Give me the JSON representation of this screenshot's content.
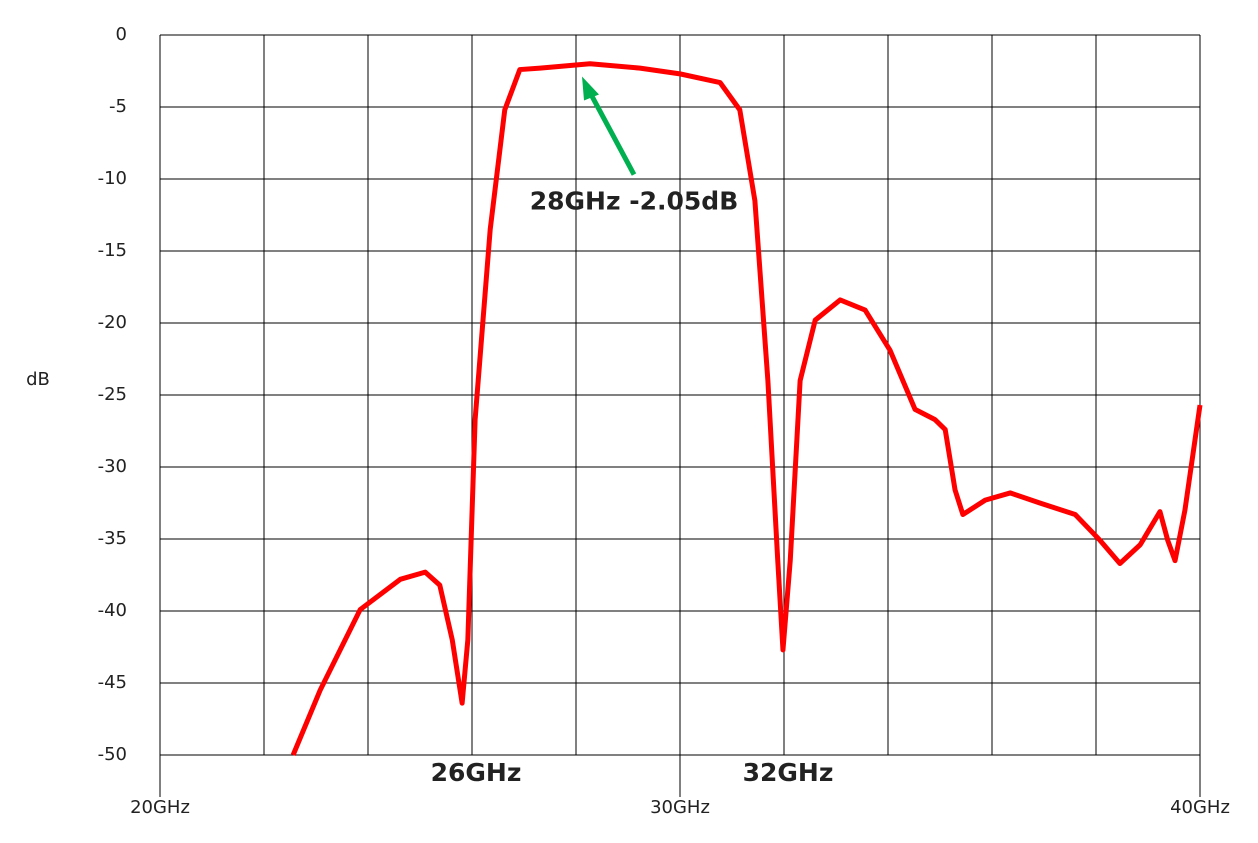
{
  "chart_data": {
    "type": "line",
    "ylabel": "dB",
    "xlim": [
      20,
      40
    ],
    "ylim": [
      -50,
      0
    ],
    "xticks": [
      {
        "value": 20,
        "label": "20GHz"
      },
      {
        "value": 30,
        "label": "30GHz"
      },
      {
        "value": 40,
        "label": "40GHz"
      }
    ],
    "yticks": [
      0,
      -5,
      -10,
      -15,
      -20,
      -25,
      -30,
      -35,
      -40,
      -45,
      -50
    ],
    "x_gridlines": [
      20,
      22,
      24,
      26,
      28,
      30,
      32,
      34,
      36,
      38,
      40
    ],
    "grid": true,
    "series": [
      {
        "color": "#ff0000",
        "x": [
          22.56,
          23.08,
          23.85,
          24.62,
          25.1,
          25.38,
          25.62,
          25.81,
          25.92,
          26.06,
          26.35,
          26.63,
          26.92,
          27.31,
          28.27,
          29.23,
          30,
          30.77,
          31.15,
          31.44,
          31.69,
          31.88,
          31.98,
          32.12,
          32.31,
          32.6,
          33.08,
          33.56,
          34.04,
          34.52,
          34.9,
          35.1,
          35.29,
          35.44,
          35.87,
          36.35,
          36.92,
          37.6,
          38.08,
          38.46,
          38.85,
          39.23,
          39.38,
          39.52,
          39.71,
          40
        ],
        "values": [
          -50,
          -45.5,
          -39.9,
          -37.8,
          -37.3,
          -38.2,
          -42,
          -46.4,
          -42,
          -26.7,
          -13.5,
          -5.2,
          -2.4,
          -2.3,
          -2.0,
          -2.3,
          -2.7,
          -3.3,
          -5.2,
          -11.5,
          -24,
          -36.5,
          -42.7,
          -36.5,
          -24,
          -19.8,
          -18.4,
          -19.1,
          -21.9,
          -26,
          -26.7,
          -27.4,
          -31.6,
          -33.3,
          -32.3,
          -31.8,
          -32.5,
          -33.3,
          -35.1,
          -36.7,
          -35.4,
          -33.1,
          -35.1,
          -36.5,
          -33,
          -25.7
        ]
      }
    ],
    "annotations": [
      {
        "text": "28GHz -2.05dB",
        "x": 28,
        "y": -2.05,
        "color": "#00b050"
      },
      {
        "text": "26GHz",
        "x": 26,
        "color": "#00b050"
      },
      {
        "text": "32GHz",
        "x": 32,
        "color": "#00b050"
      }
    ]
  }
}
